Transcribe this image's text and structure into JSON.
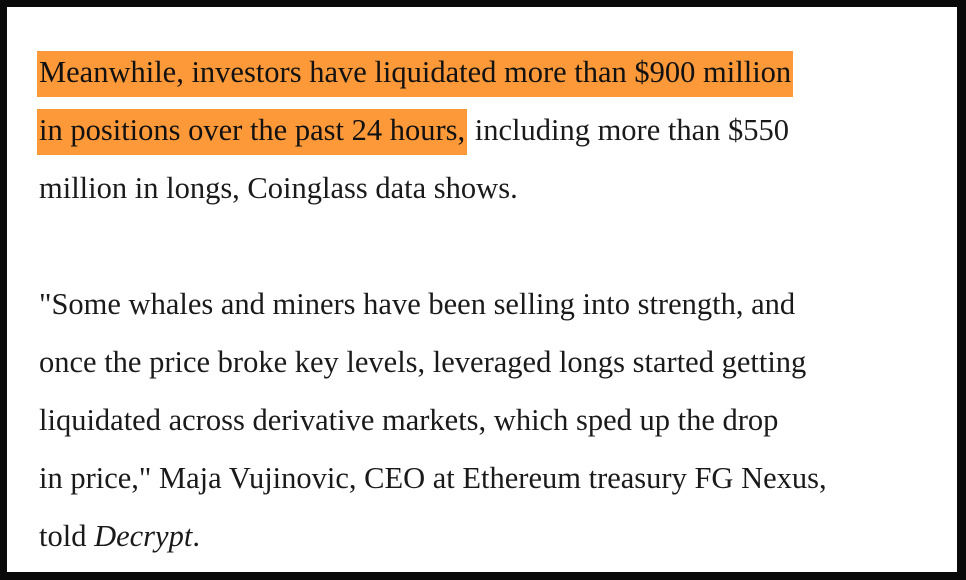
{
  "article": {
    "paragraph1": {
      "highlight_line1": "Meanwhile, investors have liquidated more than $900 million",
      "highlight_line2": "in positions over the past 24 hours,",
      "rest_line2": " including more than $550",
      "line3": "million in longs, Coinglass data shows."
    },
    "paragraph2": {
      "line1": "\"Some whales and miners have been selling into strength, and",
      "line2": "once the price broke key levels, leveraged longs started getting",
      "line3": "liquidated across derivative markets, which sped up the drop",
      "line4": "in price,\" Maja Vujinovic, CEO at Ethereum treasury FG Nexus,",
      "line5_prefix": "told ",
      "line5_publication": "Decrypt",
      "line5_suffix": "."
    },
    "highlight_color": "#fd9939"
  }
}
